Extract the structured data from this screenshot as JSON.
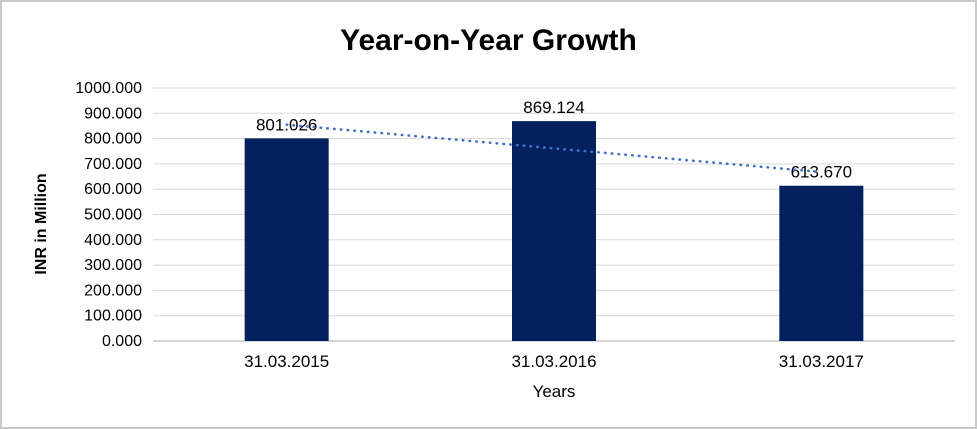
{
  "chart_data": {
    "type": "bar",
    "title": "Year-on-Year Growth",
    "xlabel": "Years",
    "ylabel": "INR in Million",
    "categories": [
      "31.03.2015",
      "31.03.2016",
      "31.03.2017"
    ],
    "values": [
      801.026,
      869.124,
      613.67
    ],
    "data_labels": [
      "801.026",
      "869.124",
      "613.670"
    ],
    "ylim": [
      0,
      1000
    ],
    "ytick_step": 100,
    "ytick_labels": [
      "0.000",
      "100.000",
      "200.000",
      "300.000",
      "400.000",
      "500.000",
      "600.000",
      "700.000",
      "800.000",
      "900.000",
      "1000.000"
    ],
    "grid": true,
    "legend": "none",
    "trendline": "linear-dotted",
    "colors": {
      "bar": "#02215e",
      "trendline": "#4472c4",
      "gridline": "#d9d9d9",
      "axis_line": "#bfbfbf",
      "text": "#000000",
      "background": "#ffffff",
      "frame_border": "#c9c9c9"
    }
  }
}
